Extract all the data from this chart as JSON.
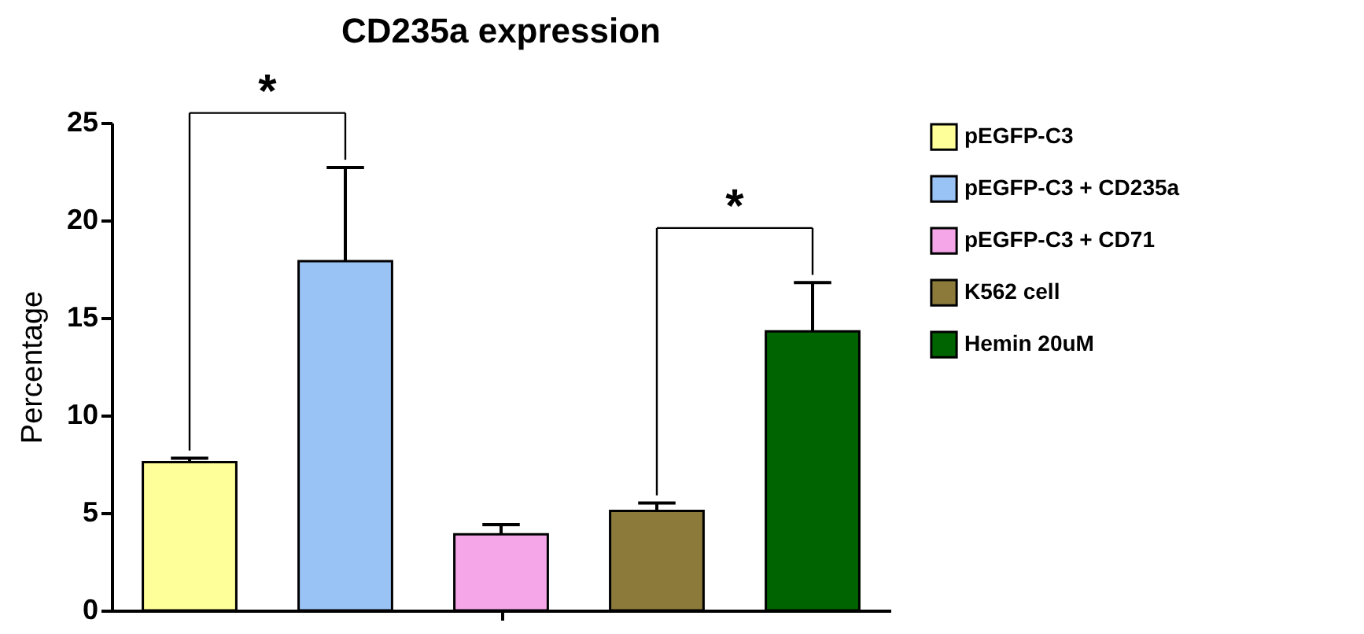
{
  "chart_data": {
    "type": "bar",
    "title": "CD235a expression",
    "ylabel": "Percentage",
    "categories": [
      null,
      null,
      null,
      null,
      null
    ],
    "series": [
      {
        "name": "pEGFP-C3",
        "color": "#ffff99",
        "values": [
          7.6,
          null,
          null,
          null,
          null
        ],
        "errors": [
          [
            7.6,
            7.8
          ],
          null,
          null,
          null,
          null
        ]
      },
      {
        "name": "pEGFP-C3 + CD235a",
        "color": "#99c2f5",
        "values": [
          null,
          17.9,
          null,
          null,
          null
        ],
        "errors": [
          null,
          [
            17.9,
            22.7
          ],
          null,
          null,
          null
        ]
      },
      {
        "name": "pEGFP-C3 + CD71",
        "color": "#f4a6e8",
        "values": [
          null,
          null,
          3.9,
          null,
          null
        ],
        "errors": [
          null,
          null,
          [
            3.9,
            4.4
          ],
          null,
          null
        ]
      },
      {
        "name": "K562 cell",
        "color": "#8b7a3a",
        "values": [
          null,
          null,
          null,
          5.1,
          null
        ],
        "errors": [
          null,
          null,
          null,
          [
            5.1,
            5.5
          ],
          null
        ]
      },
      {
        "name": "Hemin 20uM",
        "color": "#006400",
        "values": [
          null,
          null,
          null,
          null,
          14.3
        ],
        "errors": [
          null,
          null,
          null,
          null,
          [
            14.3,
            16.8
          ]
        ]
      }
    ],
    "ylim": [
      0,
      25
    ],
    "yticks": [
      0,
      5,
      10,
      15,
      20,
      25
    ],
    "grid": false,
    "legend": "top right",
    "annotations": [
      "*",
      "*"
    ]
  }
}
